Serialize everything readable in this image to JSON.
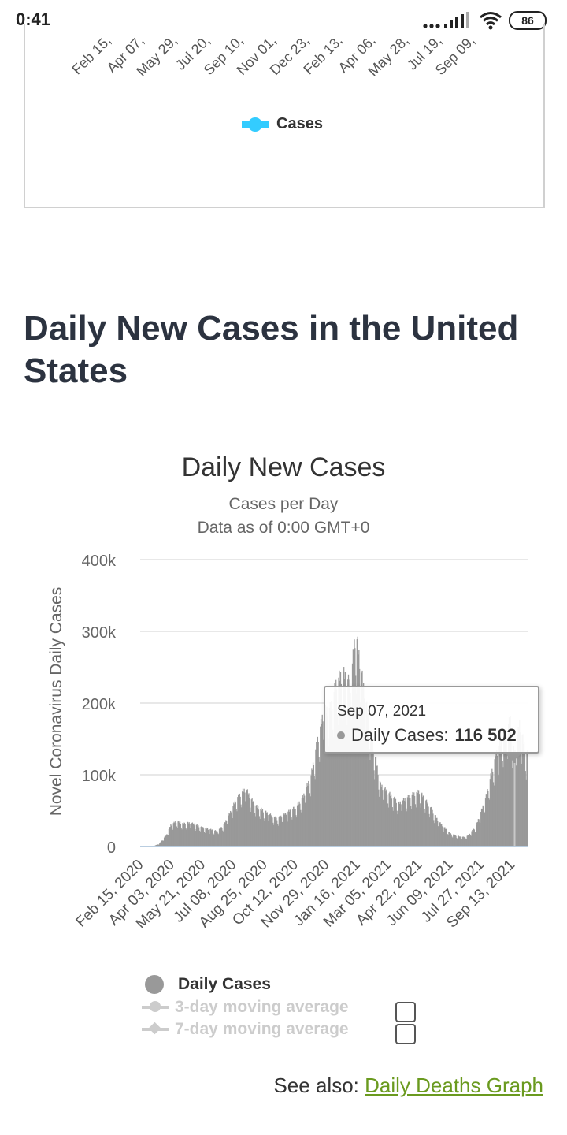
{
  "status_bar": {
    "time": "0:41",
    "signal_icon": "signal-icon",
    "wifi_icon": "wifi-icon",
    "battery_level": "86"
  },
  "previous_chart": {
    "x_ticks": [
      "Feb 15,",
      "Apr 07,",
      "May 29,",
      "Jul 20,",
      "Sep 10,",
      "Nov 01,",
      "Dec 23,",
      "Feb 13,",
      "Apr 06,",
      "May 28,",
      "Jul 19,",
      "Sep 09,"
    ],
    "legend": {
      "label": "Cases",
      "color": "#33ccff"
    }
  },
  "section": {
    "title": "Daily New Cases in the United States"
  },
  "chart_data": {
    "type": "bar",
    "title": "Daily New Cases",
    "subtitle": "Cases per Day",
    "subtitle2": "Data as of 0:00 GMT+0",
    "ylabel": "Novel Coronavirus Daily Cases",
    "ylim": [
      0,
      400000
    ],
    "y_ticks": [
      "0",
      "100k",
      "200k",
      "300k",
      "400k"
    ],
    "x_ticks": [
      "Feb 15, 2020",
      "Apr 03, 2020",
      "May 21, 2020",
      "Jul 08, 2020",
      "Aug 25, 2020",
      "Oct 12, 2020",
      "Nov 29, 2020",
      "Jan 16, 2021",
      "Mar 05, 2021",
      "Apr 22, 2021",
      "Jun 09, 2021",
      "Jul 27, 2021",
      "Sep 13, 2021"
    ],
    "bar_color": "#999999",
    "grid": true,
    "series": [
      {
        "name": "Daily Cases",
        "points": [
          [
            "2020-02-15",
            0
          ],
          [
            "2020-03-05",
            100
          ],
          [
            "2020-03-15",
            4000
          ],
          [
            "2020-03-25",
            15000
          ],
          [
            "2020-04-01",
            28000
          ],
          [
            "2020-04-10",
            33000
          ],
          [
            "2020-04-20",
            30000
          ],
          [
            "2020-05-01",
            31000
          ],
          [
            "2020-05-15",
            26000
          ],
          [
            "2020-06-01",
            22000
          ],
          [
            "2020-06-10",
            20000
          ],
          [
            "2020-06-20",
            27000
          ],
          [
            "2020-07-01",
            45000
          ],
          [
            "2020-07-10",
            62000
          ],
          [
            "2020-07-20",
            72000
          ],
          [
            "2020-07-25",
            75000
          ],
          [
            "2020-08-01",
            62000
          ],
          [
            "2020-08-10",
            52000
          ],
          [
            "2020-08-25",
            44000
          ],
          [
            "2020-09-10",
            36000
          ],
          [
            "2020-09-25",
            44000
          ],
          [
            "2020-10-10",
            52000
          ],
          [
            "2020-10-20",
            65000
          ],
          [
            "2020-11-01",
            92000
          ],
          [
            "2020-11-10",
            135000
          ],
          [
            "2020-11-20",
            175000
          ],
          [
            "2020-12-01",
            180000
          ],
          [
            "2020-12-10",
            215000
          ],
          [
            "2020-12-20",
            225000
          ],
          [
            "2020-12-31",
            210000
          ],
          [
            "2021-01-08",
            280000
          ],
          [
            "2021-01-16",
            230000
          ],
          [
            "2021-01-25",
            180000
          ],
          [
            "2021-02-05",
            125000
          ],
          [
            "2021-02-15",
            80000
          ],
          [
            "2021-03-01",
            68000
          ],
          [
            "2021-03-15",
            56000
          ],
          [
            "2021-04-01",
            66000
          ],
          [
            "2021-04-15",
            72000
          ],
          [
            "2021-05-01",
            52000
          ],
          [
            "2021-05-15",
            32000
          ],
          [
            "2021-06-01",
            17000
          ],
          [
            "2021-06-15",
            13000
          ],
          [
            "2021-06-25",
            12000
          ],
          [
            "2021-07-10",
            25000
          ],
          [
            "2021-07-25",
            62000
          ],
          [
            "2021-08-10",
            120000
          ],
          [
            "2021-08-25",
            150000
          ],
          [
            "2021-09-01",
            165000
          ],
          [
            "2021-09-07",
            116502
          ],
          [
            "2021-09-15",
            160000
          ],
          [
            "2021-09-25",
            120000
          ]
        ]
      }
    ],
    "tooltip": {
      "date": "Sep 07, 2021",
      "series": "Daily Cases:",
      "value": "116 502"
    }
  },
  "legend": {
    "daily_cases": "Daily Cases",
    "ma3": "3-day moving average",
    "ma7": "7-day moving average"
  },
  "see_also": {
    "prefix": "See also: ",
    "link": "Daily Deaths Graph"
  }
}
